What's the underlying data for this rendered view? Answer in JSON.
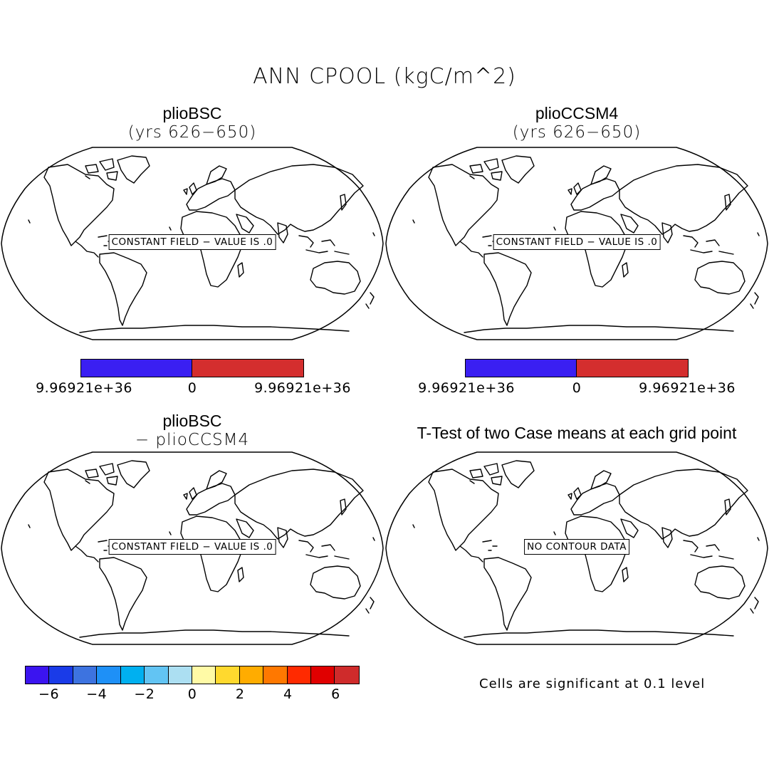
{
  "figure": {
    "title": "ANN CPOOL (kgC/m^2)"
  },
  "panels": [
    {
      "id": "case1",
      "name": "plioBSC",
      "subtitle": "(yrs 626−650)",
      "map_label": "CONSTANT FIELD − VALUE IS .0"
    },
    {
      "id": "case2",
      "name": "plioCCSM4",
      "subtitle": "(yrs 626−650)",
      "map_label": "CONSTANT FIELD − VALUE IS .0"
    },
    {
      "id": "diff",
      "name": "plioBSC",
      "subtitle": "− plioCCSM4",
      "map_label": "CONSTANT FIELD − VALUE IS .0"
    },
    {
      "id": "ttest",
      "name": "T-Test of two Case means at each grid point",
      "map_label": "NO CONTOUR DATA"
    }
  ],
  "colorbars": {
    "case1": {
      "colors": [
        "#3a1ff2",
        "#d42e2e"
      ],
      "ticks": [
        "9.96921e+36",
        "0",
        "9.96921e+36"
      ]
    },
    "case2": {
      "colors": [
        "#3a1ff2",
        "#d42e2e"
      ],
      "ticks": [
        "9.96921e+36",
        "0",
        "9.96921e+36"
      ]
    },
    "diff": {
      "colors": [
        "#3b14f0",
        "#1a3be8",
        "#3d73e0",
        "#1e90f7",
        "#00b0f0",
        "#62c4f3",
        "#acdff2",
        "#fffaa6",
        "#ffd92e",
        "#ffac00",
        "#ff7800",
        "#ff2a00",
        "#e00000",
        "#cf2b2b"
      ],
      "ticks": [
        "−6",
        "−4",
        "−2",
        "0",
        "2",
        "4",
        "6"
      ]
    }
  },
  "significance_note": "Cells are significant at 0.1 level"
}
